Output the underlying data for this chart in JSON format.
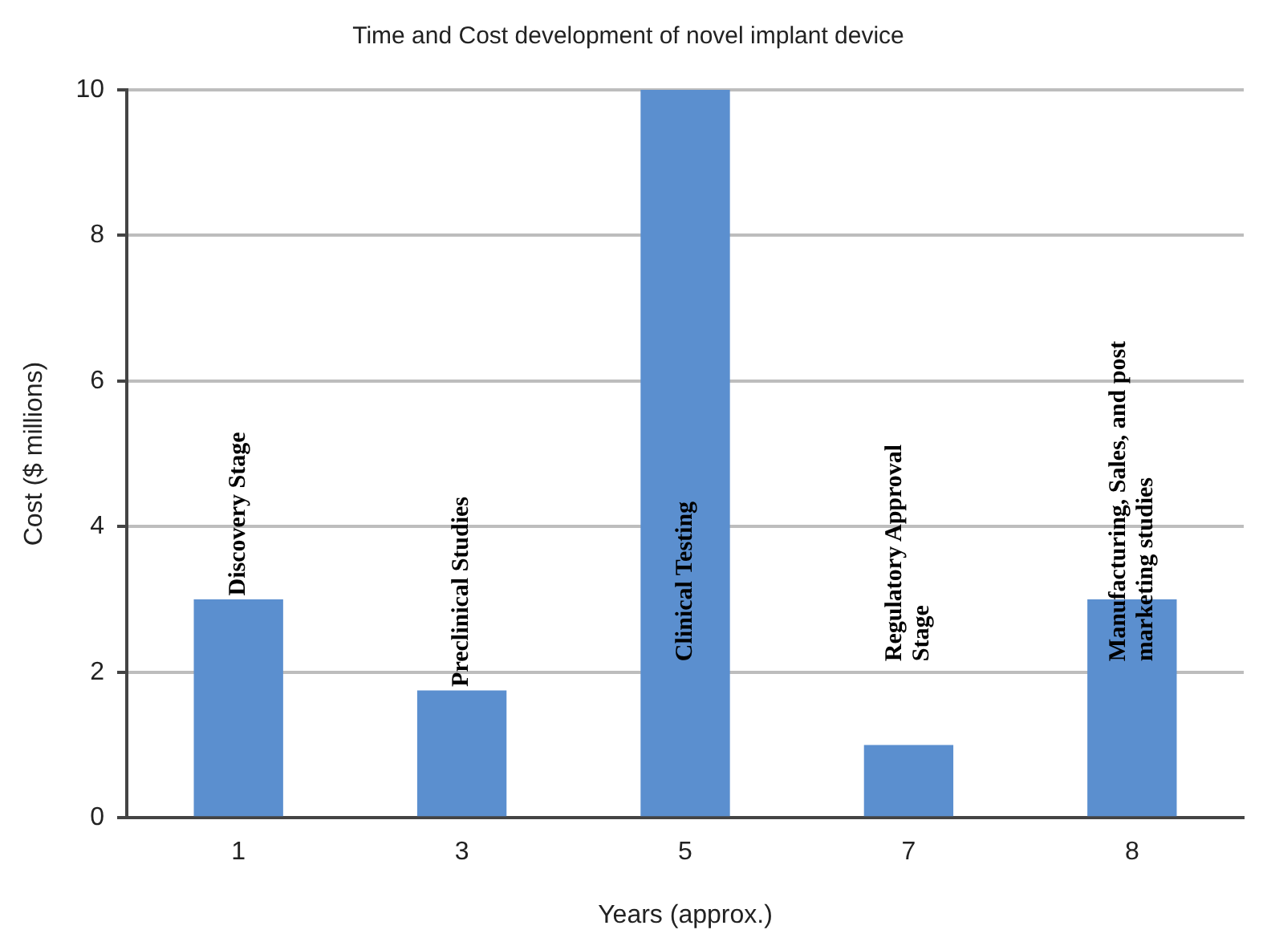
{
  "chart_data": {
    "type": "bar",
    "title": "Time and Cost development of novel implant device",
    "xlabel": "Years (approx.)",
    "ylabel": "Cost ($ millions)",
    "categories": [
      "1",
      "3",
      "5",
      "7",
      "8"
    ],
    "values": [
      3,
      1.75,
      10,
      1,
      3
    ],
    "color": "#5b8fcf",
    "ylim": [
      0,
      10
    ],
    "yticks": [
      0,
      2,
      4,
      6,
      8,
      10
    ],
    "grid": "y",
    "legend": false,
    "annotations": [
      {
        "text": "Discovery Stage",
        "x": "1",
        "y": 3.05
      },
      {
        "text": "Preclinical Studies",
        "x": "3",
        "y": 1.8
      },
      "Clinical Testing",
      "Regulatory Approval\nStage",
      "Manufacturing, Sales, and post\nmarketing studies"
    ]
  }
}
